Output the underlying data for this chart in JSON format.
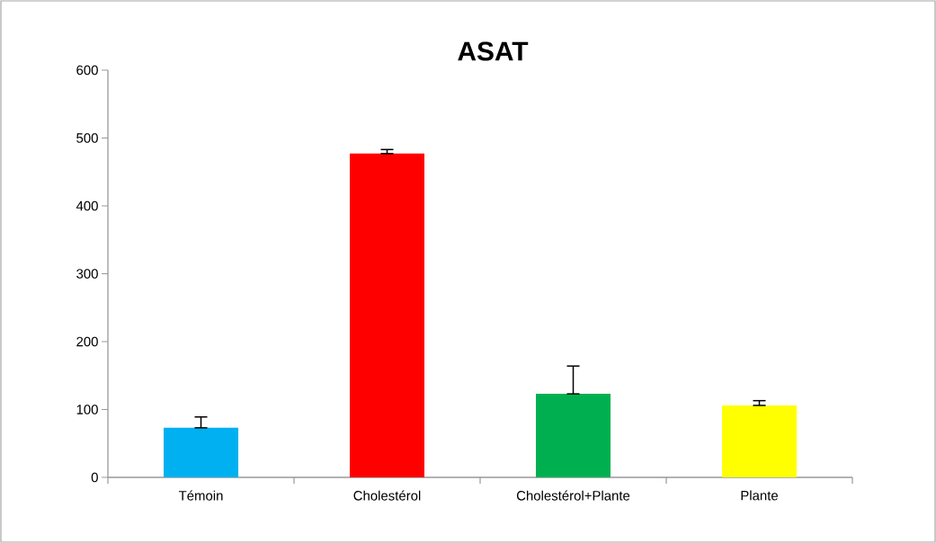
{
  "chart_data": {
    "type": "bar",
    "title": "ASAT",
    "categories": [
      "Témoin",
      "Cholestérol",
      "Cholestérol+Plante",
      "Plante"
    ],
    "values": [
      73,
      477,
      123,
      106
    ],
    "colors": [
      "#00b0f0",
      "#ff0000",
      "#00b050",
      "#ffff00"
    ],
    "errors": [
      [
        73,
        89
      ],
      [
        477,
        483
      ],
      [
        123,
        164
      ],
      [
        106,
        113
      ]
    ],
    "ylim": [
      0,
      600
    ],
    "yticks": [
      0,
      100,
      200,
      300,
      400,
      500,
      600
    ],
    "grid": false
  }
}
